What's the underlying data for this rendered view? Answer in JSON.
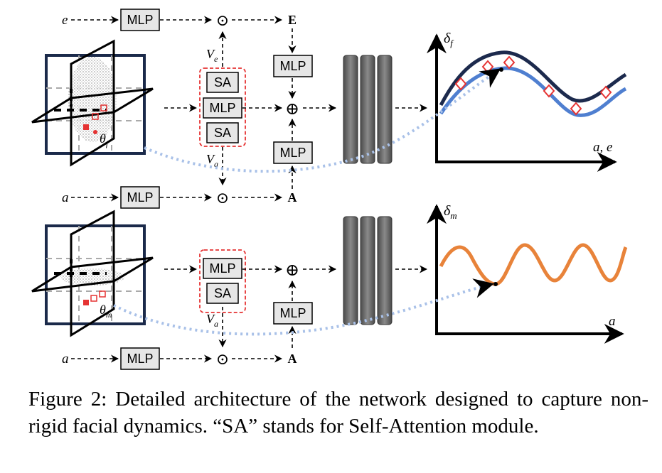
{
  "diagram": {
    "top_branch": {
      "input_e": "e",
      "input_a": "a",
      "mlp_label": "MLP",
      "sa_label": "SA",
      "ve_label": "V",
      "ve_sub": "e",
      "va_label": "V",
      "va_sub": "a",
      "out_E": "E",
      "out_A": "A",
      "theta_label": "θ",
      "theta_sub": "f",
      "plot_ylabel": "δ",
      "plot_ysub": "f",
      "plot_xlabel": "a, e"
    },
    "bottom_branch": {
      "input_a": "a",
      "mlp_label": "MLP",
      "sa_label": "SA",
      "va_label": "V",
      "va_sub": "a",
      "out_A": "A",
      "theta_label": "θ",
      "theta_sub": "m",
      "plot_ylabel": "δ",
      "plot_ysub": "m",
      "plot_xlabel": "a"
    },
    "symbols": {
      "odot": "⊙",
      "oplus": "⊕"
    },
    "colors": {
      "navy": "#1b2a4a",
      "curve_dark": "#1c2a4d",
      "curve_blue": "#4f7fd0",
      "curve_orange": "#e8833a",
      "red": "#e53333",
      "dotted_blue": "#a9c1e8",
      "gray_block": "#6b6b6b"
    }
  },
  "caption": {
    "text": "Figure 2: Detailed architecture of the network designed to capture non-rigid facial dynamics. “SA” stands for Self-Attention module."
  }
}
